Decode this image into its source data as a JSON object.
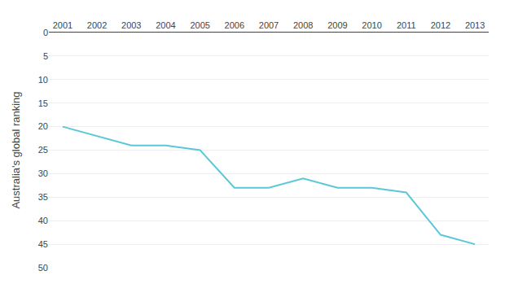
{
  "chart_data": {
    "type": "line",
    "x": [
      2001,
      2002,
      2003,
      2004,
      2005,
      2006,
      2007,
      2008,
      2009,
      2010,
      2011,
      2012,
      2013
    ],
    "values": [
      20,
      22,
      24,
      24,
      25,
      33,
      33,
      31,
      33,
      33,
      34,
      43,
      45
    ],
    "color": "#5bc8d8",
    "ylabel": "Australia's global ranking",
    "xlim": [
      2000.6,
      2013.4
    ],
    "ylim": [
      50,
      0
    ],
    "xticks": [
      2001,
      2002,
      2003,
      2004,
      2005,
      2006,
      2007,
      2008,
      2009,
      2010,
      2011,
      2012,
      2013
    ],
    "yticks": [
      0,
      5,
      10,
      15,
      20,
      25,
      30,
      35,
      40,
      45,
      50
    ],
    "grid": "y"
  }
}
